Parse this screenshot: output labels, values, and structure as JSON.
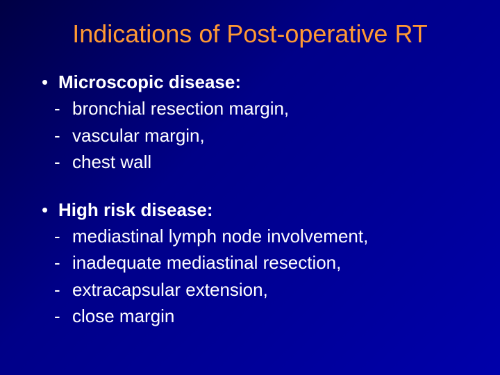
{
  "colors": {
    "background_start": "#000044",
    "background_mid": "#000088",
    "background_end": "#0000aa",
    "title_color": "#ff9933",
    "text_color": "#ffffff"
  },
  "typography": {
    "title_fontsize": 36,
    "body_fontsize": 26,
    "font_family": "Arial"
  },
  "title": "Indications of Post-operative RT",
  "sections": [
    {
      "bullet_symbol": "•",
      "header": "Microscopic disease:",
      "dash_symbol": "-",
      "items": [
        "bronchial resection margin,",
        "vascular margin,",
        "chest wall"
      ]
    },
    {
      "bullet_symbol": "•",
      "header": "High risk disease:",
      "dash_symbol": "-",
      "items": [
        "mediastinal lymph node involvement,",
        "inadequate mediastinal resection,",
        "extracapsular extension,",
        "close margin"
      ]
    }
  ]
}
